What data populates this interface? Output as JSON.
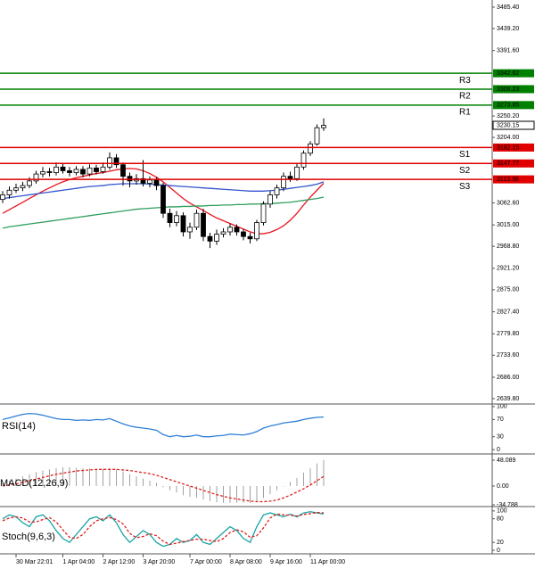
{
  "chart_data": [
    {
      "type": "candlestick",
      "categories": [
        null,
        null,
        "30 Mar 22:01",
        null,
        null,
        null,
        null,
        null,
        null,
        "1 Apr 04:00",
        null,
        null,
        null,
        null,
        null,
        "2 Apr 12:00",
        null,
        null,
        null,
        null,
        null,
        "3 Apr 20:00",
        null,
        null,
        null,
        null,
        null,
        null,
        "7 Apr 00:00",
        null,
        null,
        null,
        null,
        null,
        "8 Apr 08:00",
        null,
        null,
        null,
        null,
        null,
        "9 Apr 16:00",
        null,
        null,
        null,
        null,
        null,
        "11 Apr 00:00",
        null,
        null
      ],
      "open": [
        3070,
        3080,
        3090,
        3095,
        3100,
        3110,
        3125,
        3130,
        3128,
        3140,
        3132,
        3128,
        3135,
        3125,
        3138,
        3130,
        3140,
        3160,
        3145,
        3120,
        3110,
        3115,
        3105,
        3112,
        3100,
        3040,
        3020,
        3035,
        3000,
        3010,
        3040,
        2990,
        2980,
        2995,
        3000,
        3010,
        3000,
        2990,
        2985,
        3020,
        3060,
        3080,
        3095,
        3120,
        3115,
        3140,
        3170,
        3190,
        3225
      ],
      "high": [
        3088,
        3098,
        3104,
        3108,
        3118,
        3132,
        3140,
        3138,
        3150,
        3148,
        3140,
        3142,
        3142,
        3146,
        3145,
        3150,
        3172,
        3168,
        3150,
        3128,
        3125,
        3155,
        3120,
        3118,
        3106,
        3050,
        3045,
        3042,
        3020,
        3048,
        3050,
        2998,
        3005,
        3008,
        3018,
        3016,
        3006,
        2998,
        3026,
        3066,
        3088,
        3102,
        3128,
        3130,
        3148,
        3176,
        3196,
        3232,
        3245
      ],
      "low": [
        3062,
        3072,
        3084,
        3088,
        3094,
        3104,
        3118,
        3120,
        3122,
        3126,
        3120,
        3122,
        3118,
        3120,
        3124,
        3126,
        3134,
        3138,
        3100,
        3096,
        3102,
        3098,
        3096,
        3090,
        3030,
        3010,
        3012,
        2990,
        2985,
        3004,
        2980,
        2965,
        2972,
        2988,
        2992,
        2992,
        2982,
        2975,
        2980,
        3014,
        3052,
        3072,
        3088,
        3108,
        3110,
        3134,
        3164,
        3186,
        3218
      ],
      "close": [
        3080,
        3090,
        3095,
        3100,
        3110,
        3125,
        3130,
        3128,
        3140,
        3132,
        3128,
        3135,
        3125,
        3138,
        3130,
        3140,
        3160,
        3145,
        3120,
        3110,
        3115,
        3105,
        3112,
        3100,
        3040,
        3020,
        3035,
        3000,
        3010,
        3040,
        2990,
        2980,
        2995,
        3000,
        3010,
        3000,
        2990,
        2985,
        3020,
        3060,
        3080,
        3095,
        3120,
        3115,
        3140,
        3170,
        3190,
        3225,
        3230
      ],
      "up_color": "#ffffff",
      "down_color": "#000000",
      "wick_color": "#000000",
      "series": [
        {
          "color": "#e8141e",
          "values": [
            3040,
            3048,
            3056,
            3064,
            3072,
            3080,
            3088,
            3095,
            3102,
            3108,
            3113,
            3117,
            3120,
            3123,
            3126,
            3128,
            3131,
            3134,
            3136,
            3137,
            3136,
            3132,
            3126,
            3118,
            3108,
            3096,
            3084,
            3072,
            3062,
            3054,
            3046,
            3038,
            3030,
            3024,
            3018,
            3012,
            3006,
            3000,
            2996,
            2996,
            2999,
            3005,
            3013,
            3025,
            3040,
            3058,
            3075,
            3090,
            3105
          ]
        },
        {
          "color": "#3355cc",
          "values": [
            3072,
            3074,
            3076,
            3078,
            3080,
            3082,
            3084,
            3086,
            3088,
            3090,
            3092,
            3094,
            3096,
            3098,
            3099,
            3100,
            3102,
            3103,
            3104,
            3104,
            3104,
            3104,
            3103,
            3102,
            3101,
            3100,
            3099,
            3098,
            3097,
            3096,
            3095,
            3094,
            3093,
            3092,
            3091,
            3090,
            3089,
            3088,
            3088,
            3088,
            3089,
            3090,
            3092,
            3094,
            3096,
            3098,
            3100,
            3103,
            3108
          ]
        },
        {
          "color": "#2e9e5e",
          "values": [
            3008,
            3011,
            3013,
            3015,
            3017,
            3019,
            3021,
            3023,
            3025,
            3027,
            3029,
            3031,
            3033,
            3035,
            3037,
            3039,
            3041,
            3043,
            3045,
            3047,
            3049,
            3050,
            3051,
            3052,
            3053,
            3054,
            3054,
            3055,
            3055,
            3056,
            3056,
            3057,
            3057,
            3058,
            3058,
            3059,
            3059,
            3060,
            3060,
            3061,
            3061,
            3062,
            3063,
            3064,
            3066,
            3068,
            3070,
            3072,
            3075
          ]
        }
      ],
      "levels": [
        {
          "name": "R3",
          "value": 3342.62,
          "color": "#008000"
        },
        {
          "name": "R2",
          "value": 3308.23,
          "color": "#008000"
        },
        {
          "name": "R1",
          "value": 3273.85,
          "color": "#008000"
        },
        {
          "name": "S1",
          "value": 3182.15,
          "color": "#e00000"
        },
        {
          "name": "S2",
          "value": 3147.77,
          "color": "#e00000"
        },
        {
          "name": "S3",
          "value": 3113.38,
          "color": "#e00000"
        }
      ],
      "last_price": 3230.15,
      "ylim": [
        2628.2,
        3500.8
      ],
      "yticks": [
        {
          "value": 3485.4,
          "label": "3485.40"
        },
        {
          "value": 3439.2,
          "label": "3439.20"
        },
        {
          "value": 3391.6,
          "label": "3391.60"
        },
        {
          "value": 3250.2,
          "label": "3250.20"
        },
        {
          "value": 3204,
          "label": "3204.00"
        },
        {
          "value": 3062.6,
          "label": "3062.60"
        },
        {
          "value": 3015,
          "label": "3015.00"
        },
        {
          "value": 2968.8,
          "label": "2968.80"
        },
        {
          "value": 2921.2,
          "label": "2921.20"
        },
        {
          "value": 2875,
          "label": "2875.00"
        },
        {
          "value": 2827.4,
          "label": "2827.40"
        },
        {
          "value": 2779.8,
          "label": "2779.80"
        },
        {
          "value": 2733.6,
          "label": "2733.60"
        },
        {
          "value": 2686,
          "label": "2686.00"
        },
        {
          "value": 2639.8,
          "label": "2639.80"
        }
      ]
    },
    {
      "type": "line",
      "label": "RSI(14)",
      "series": [
        {
          "color": "#2f7fd8",
          "values": [
            70,
            74,
            78,
            82,
            84,
            83,
            80,
            76,
            72,
            70,
            70,
            68,
            69,
            68,
            70,
            69,
            72,
            66,
            60,
            55,
            52,
            50,
            48,
            45,
            35,
            30,
            33,
            30,
            31,
            34,
            30,
            30,
            32,
            33,
            36,
            35,
            34,
            37,
            42,
            50,
            55,
            58,
            62,
            64,
            66,
            70,
            73,
            75,
            76
          ]
        }
      ],
      "ylim": [
        -10,
        106
      ],
      "yticks": [
        100,
        70,
        30,
        0
      ]
    },
    {
      "type": "bar",
      "label": "MACD(12,26,9)",
      "color": "#a0a0a0",
      "values": [
        5,
        10,
        14,
        18,
        22,
        26,
        29,
        31,
        33,
        35,
        35,
        34,
        33,
        33,
        32,
        32,
        33,
        31,
        27,
        22,
        18,
        14,
        10,
        6,
        -2,
        -8,
        -12,
        -17,
        -20,
        -22,
        -25,
        -28,
        -30,
        -31,
        -31,
        -31,
        -31,
        -31,
        -28,
        -22,
        -15,
        -8,
        0,
        8,
        15,
        25,
        33,
        42,
        48
      ],
      "series": [
        {
          "color": "#e02020",
          "dashed": true,
          "values": [
            0,
            2,
            4,
            7,
            10,
            13,
            16,
            19,
            22,
            24,
            26,
            28,
            29,
            30,
            31,
            31,
            31,
            31,
            30,
            29,
            27,
            25,
            23,
            20,
            16,
            12,
            8,
            4,
            0,
            -4,
            -8,
            -12,
            -16,
            -19,
            -22,
            -24,
            -26,
            -28,
            -29,
            -29,
            -28,
            -26,
            -22,
            -17,
            -11,
            -5,
            2,
            10,
            18
          ]
        }
      ],
      "ylim": [
        -38.1,
        59.7
      ],
      "yticks": [
        48.089,
        {
          "value": 0,
          "label": "0.00"
        },
        -34.788
      ]
    },
    {
      "type": "line",
      "label": "Stoch(9,6,3)",
      "series": [
        {
          "color": "#1aa3a3",
          "values": [
            80,
            90,
            85,
            70,
            60,
            85,
            90,
            75,
            50,
            30,
            20,
            40,
            60,
            80,
            85,
            75,
            90,
            70,
            40,
            20,
            35,
            50,
            40,
            20,
            10,
            15,
            30,
            20,
            25,
            40,
            20,
            15,
            30,
            45,
            60,
            50,
            30,
            20,
            60,
            90,
            95,
            90,
            85,
            92,
            85,
            95,
            98,
            95,
            92
          ]
        },
        {
          "color": "#e02020",
          "dashed": true,
          "values": [
            75,
            82,
            85,
            82,
            72,
            72,
            78,
            83,
            72,
            52,
            33,
            30,
            40,
            60,
            75,
            80,
            83,
            78,
            67,
            43,
            32,
            35,
            42,
            37,
            23,
            15,
            18,
            22,
            25,
            28,
            28,
            25,
            22,
            30,
            45,
            52,
            47,
            33,
            37,
            57,
            82,
            92,
            90,
            89,
            87,
            91,
            93,
            96,
            95
          ]
        }
      ],
      "ylim": [
        -9,
        111
      ],
      "yticks": [
        100,
        80,
        20,
        0
      ]
    }
  ]
}
